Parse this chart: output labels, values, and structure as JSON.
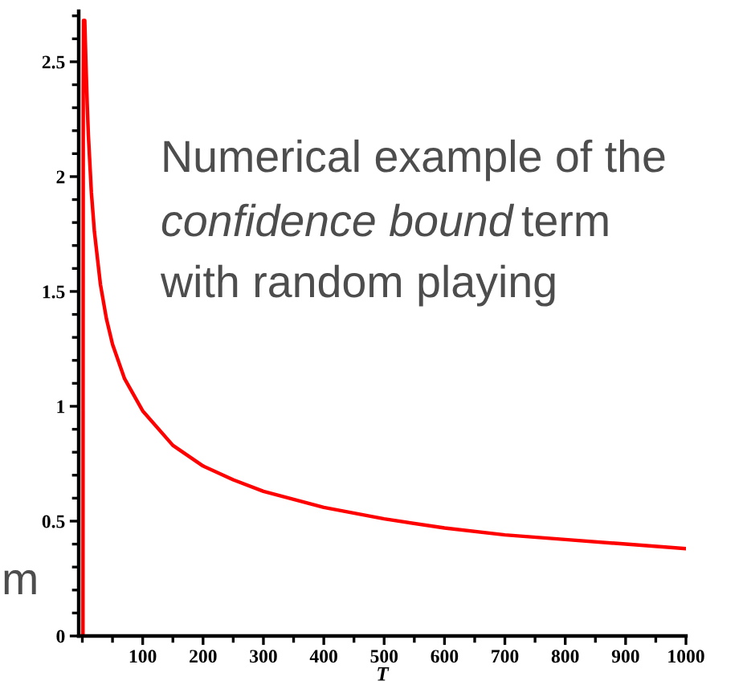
{
  "chart_data": {
    "type": "line",
    "xlabel": "T",
    "x": [
      1,
      1.5,
      2,
      4,
      6,
      8,
      10,
      15,
      20,
      30,
      40,
      50,
      70,
      100,
      150,
      200,
      250,
      300,
      400,
      500,
      600,
      700,
      800,
      900,
      1000
    ],
    "series": [
      {
        "color": "#ff0000",
        "values": [
          0,
          2.36,
          2.68,
          2.68,
          2.49,
          2.32,
          2.18,
          1.93,
          1.76,
          1.53,
          1.38,
          1.27,
          1.12,
          0.98,
          0.83,
          0.74,
          0.68,
          0.63,
          0.56,
          0.51,
          0.47,
          0.44,
          0.42,
          0.4,
          0.38
        ]
      }
    ],
    "xlim": [
      -6,
      1000
    ],
    "ylim": [
      0,
      2.72
    ],
    "xticks": [
      100,
      200,
      300,
      400,
      500,
      600,
      700,
      800,
      900,
      1000
    ],
    "yticks": [
      0,
      0.5,
      1,
      1.5,
      2,
      2.5
    ],
    "grid": false,
    "legend": false,
    "marker": "none",
    "line_style": "solid",
    "annotations": [
      "Numerical example of the",
      "confidence bound",
      "term",
      "with random playing",
      "m"
    ]
  }
}
